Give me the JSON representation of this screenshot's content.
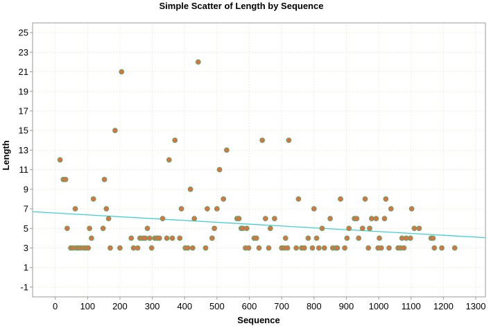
{
  "chart_data": {
    "type": "scatter",
    "title": "Simple Scatter of Length by Sequence",
    "xlabel": "Sequence",
    "ylabel": "Length",
    "xlim": [
      -70,
      1330
    ],
    "ylim": [
      -2,
      26
    ],
    "x_ticks": [
      0,
      100,
      200,
      300,
      400,
      500,
      600,
      700,
      800,
      900,
      1000,
      1100,
      1200,
      1300
    ],
    "y_ticks": [
      -1,
      1,
      3,
      5,
      7,
      9,
      11,
      13,
      15,
      17,
      19,
      21,
      23,
      25
    ],
    "grid": true,
    "legend": "none",
    "colors": {
      "point_fill": "#e0703c",
      "point_stroke": "#5aa870",
      "fit_line": "#3fcfd0",
      "grid": "#eeeedd",
      "axis": "#999999",
      "background": "#ffffff"
    },
    "fit_line": {
      "x": [
        -70,
        1330
      ],
      "y": [
        6.7,
        4.05
      ]
    },
    "points": [
      [
        15,
        12
      ],
      [
        25,
        10
      ],
      [
        32,
        10
      ],
      [
        37,
        5
      ],
      [
        48,
        3
      ],
      [
        55,
        3
      ],
      [
        62,
        7
      ],
      [
        65,
        3
      ],
      [
        72,
        3
      ],
      [
        78,
        3
      ],
      [
        88,
        3
      ],
      [
        95,
        3
      ],
      [
        102,
        3
      ],
      [
        106,
        5
      ],
      [
        112,
        4
      ],
      [
        118,
        8
      ],
      [
        148,
        5
      ],
      [
        152,
        10
      ],
      [
        158,
        7
      ],
      [
        165,
        6
      ],
      [
        170,
        3
      ],
      [
        185,
        15
      ],
      [
        200,
        3
      ],
      [
        205,
        21
      ],
      [
        235,
        4
      ],
      [
        242,
        3
      ],
      [
        255,
        3
      ],
      [
        262,
        4
      ],
      [
        270,
        4
      ],
      [
        278,
        4
      ],
      [
        285,
        5
      ],
      [
        292,
        4
      ],
      [
        298,
        3
      ],
      [
        308,
        4
      ],
      [
        315,
        4
      ],
      [
        322,
        4
      ],
      [
        332,
        6
      ],
      [
        345,
        4
      ],
      [
        352,
        12
      ],
      [
        362,
        4
      ],
      [
        370,
        14
      ],
      [
        385,
        4
      ],
      [
        390,
        7
      ],
      [
        402,
        3
      ],
      [
        410,
        3
      ],
      [
        418,
        9
      ],
      [
        425,
        3
      ],
      [
        430,
        6
      ],
      [
        442,
        22
      ],
      [
        465,
        3
      ],
      [
        470,
        7
      ],
      [
        485,
        4
      ],
      [
        492,
        5
      ],
      [
        500,
        7
      ],
      [
        508,
        11
      ],
      [
        520,
        8
      ],
      [
        530,
        13
      ],
      [
        562,
        6
      ],
      [
        568,
        6
      ],
      [
        575,
        5
      ],
      [
        580,
        5
      ],
      [
        588,
        3
      ],
      [
        592,
        5
      ],
      [
        598,
        3
      ],
      [
        615,
        4
      ],
      [
        622,
        4
      ],
      [
        630,
        3
      ],
      [
        640,
        14
      ],
      [
        650,
        6
      ],
      [
        660,
        3
      ],
      [
        665,
        5
      ],
      [
        678,
        6
      ],
      [
        700,
        3
      ],
      [
        708,
        3
      ],
      [
        712,
        4
      ],
      [
        718,
        3
      ],
      [
        722,
        14
      ],
      [
        745,
        3
      ],
      [
        752,
        8
      ],
      [
        762,
        3
      ],
      [
        770,
        3
      ],
      [
        782,
        4
      ],
      [
        795,
        3
      ],
      [
        800,
        7
      ],
      [
        808,
        4
      ],
      [
        815,
        3
      ],
      [
        825,
        5
      ],
      [
        832,
        3
      ],
      [
        850,
        6
      ],
      [
        858,
        3
      ],
      [
        868,
        3
      ],
      [
        872,
        3
      ],
      [
        882,
        8
      ],
      [
        895,
        3
      ],
      [
        902,
        4
      ],
      [
        908,
        5
      ],
      [
        925,
        6
      ],
      [
        932,
        6
      ],
      [
        938,
        4
      ],
      [
        950,
        5
      ],
      [
        958,
        8
      ],
      [
        968,
        3
      ],
      [
        972,
        5
      ],
      [
        978,
        6
      ],
      [
        992,
        6
      ],
      [
        998,
        3
      ],
      [
        1002,
        4
      ],
      [
        1008,
        3
      ],
      [
        1018,
        6
      ],
      [
        1022,
        8
      ],
      [
        1032,
        3
      ],
      [
        1038,
        7
      ],
      [
        1060,
        3
      ],
      [
        1068,
        3
      ],
      [
        1072,
        4
      ],
      [
        1078,
        3
      ],
      [
        1085,
        4
      ],
      [
        1098,
        4
      ],
      [
        1102,
        7
      ],
      [
        1110,
        5
      ],
      [
        1125,
        5
      ],
      [
        1162,
        4
      ],
      [
        1168,
        4
      ],
      [
        1172,
        3
      ],
      [
        1195,
        3
      ],
      [
        1235,
        3
      ]
    ]
  }
}
